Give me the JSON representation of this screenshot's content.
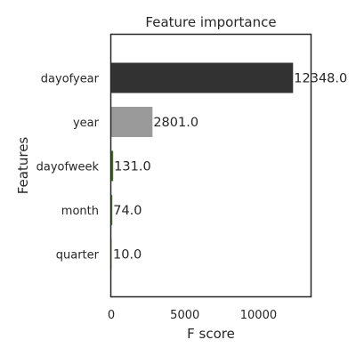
{
  "chart_data": {
    "type": "bar",
    "orientation": "horizontal",
    "title": "Feature importance",
    "xlabel": "F score",
    "ylabel": "Features",
    "categories": [
      "quarter",
      "month",
      "dayofweek",
      "year",
      "dayofyear"
    ],
    "values": [
      10.0,
      74.0,
      131.0,
      2801.0,
      12348.0
    ],
    "value_labels": [
      "10.0",
      "74.0",
      "131.0",
      "2801.0",
      "12348.0"
    ],
    "bar_colors": [
      "#d2e4c6",
      "#4a7c2b",
      "#3e6e22",
      "#9a9a9a",
      "#323232"
    ],
    "xlim": [
      0,
      13600
    ],
    "xticks": [
      0,
      5000,
      10000
    ],
    "xtick_labels": [
      "0",
      "5000",
      "10000"
    ],
    "grid": false
  }
}
